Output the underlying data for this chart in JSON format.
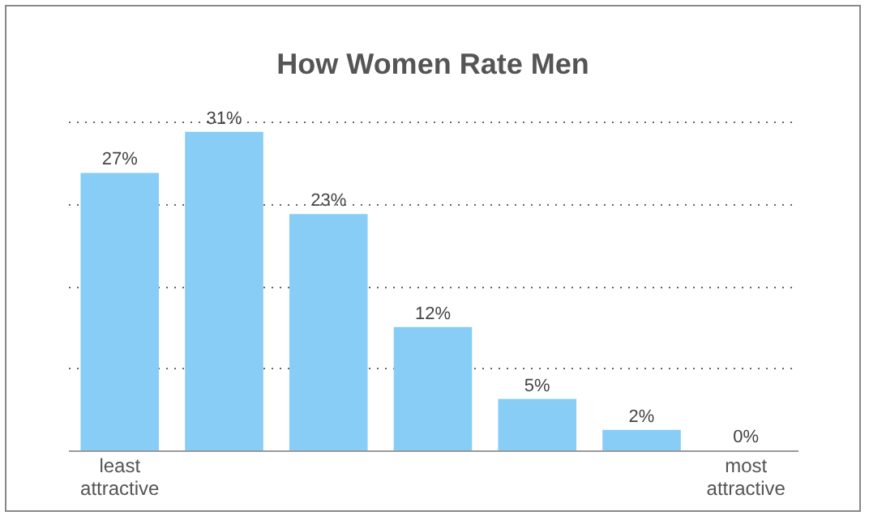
{
  "chart_data": {
    "type": "bar",
    "title": "How Women Rate Men",
    "categories": [
      "least attractive",
      null,
      null,
      null,
      null,
      null,
      "most attractive"
    ],
    "values": [
      27,
      31,
      23,
      12,
      5,
      2,
      0
    ],
    "value_labels": [
      "27%",
      "31%",
      "23%",
      "12%",
      "5%",
      "2%",
      "0%"
    ],
    "color": "#87cdf5",
    "ylim": [
      0,
      32
    ],
    "yticks": [
      {
        "value": 8,
        "label": null
      },
      {
        "value": 16,
        "label": null
      },
      {
        "value": 24,
        "label": null
      },
      {
        "value": 32,
        "label": null
      }
    ],
    "tick_labels": "x",
    "grid": "y",
    "line_style": "dotted"
  }
}
